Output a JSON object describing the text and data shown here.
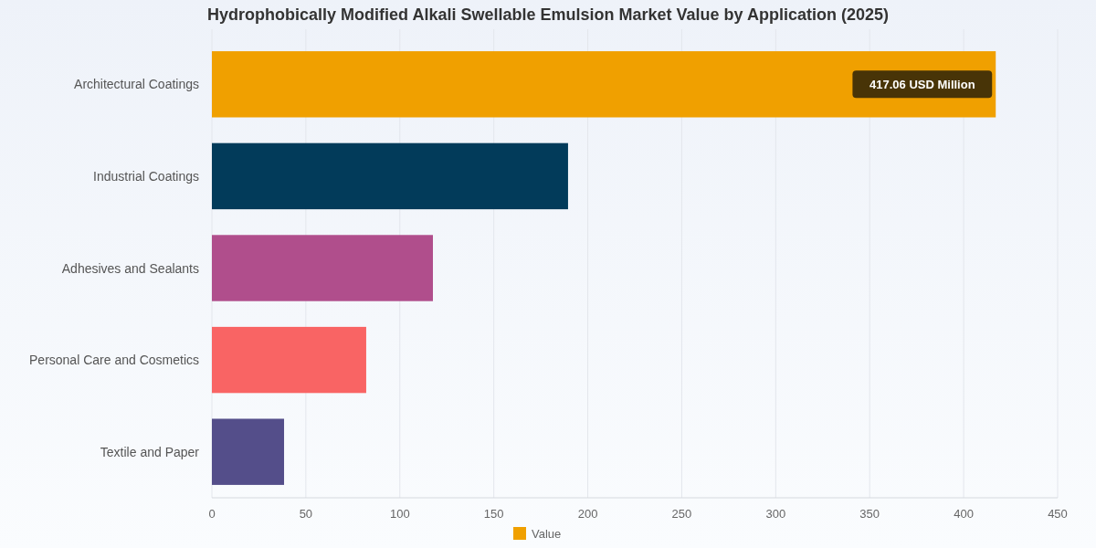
{
  "chart_data": {
    "type": "bar",
    "orientation": "horizontal",
    "title": "Hydrophobically Modified Alkali Swellable Emulsion Market Value by Application (2025)",
    "categories": [
      "Architectural Coatings",
      "Industrial Coatings",
      "Adhesives and Sealants",
      "Personal Care and Cosmetics",
      "Textile and Paper"
    ],
    "series": [
      {
        "name": "Value",
        "colors": [
          "#f0a000",
          "#023b5a",
          "#b04e8c",
          "#f96464",
          "#544e8a"
        ],
        "values": [
          417.06,
          189.5,
          117.6,
          82.1,
          38.4
        ],
        "value_labels": [
          "417.06 USD Million",
          null,
          null,
          null,
          null
        ]
      }
    ],
    "xlim": [
      0,
      450
    ],
    "xticks": [
      0,
      50,
      100,
      150,
      200,
      250,
      300,
      350,
      400,
      450
    ],
    "grid": "x",
    "legend": "bottom"
  }
}
